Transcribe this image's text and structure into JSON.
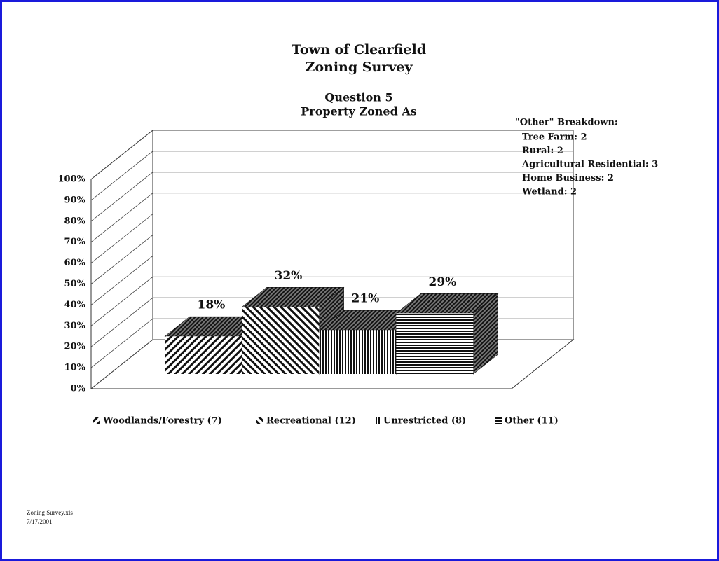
{
  "chart_data": {
    "type": "bar3d",
    "title": [
      "Town of Clearfield",
      "Zoning Survey"
    ],
    "subtitle": [
      "Question 5",
      "Property Zoned As"
    ],
    "categories": [
      "Woodlands/Forestry (7)",
      "Recreational (12)",
      "Unrestricted (8)",
      "Other (11)"
    ],
    "values": [
      18,
      32,
      21,
      29
    ],
    "value_labels": [
      "18%",
      "32%",
      "21%",
      "29%"
    ],
    "ylim": [
      0,
      100
    ],
    "yticks": [
      {
        "value": 0,
        "label": "0%"
      },
      {
        "value": 10,
        "label": "10%"
      },
      {
        "value": 20,
        "label": "20%"
      },
      {
        "value": 30,
        "label": "30%"
      },
      {
        "value": 40,
        "label": "40%"
      },
      {
        "value": 50,
        "label": "50%"
      },
      {
        "value": 60,
        "label": "60%"
      },
      {
        "value": 70,
        "label": "70%"
      },
      {
        "value": 80,
        "label": "80%"
      },
      {
        "value": 90,
        "label": "90%"
      },
      {
        "value": 100,
        "label": "100%"
      }
    ],
    "grid": true,
    "annotation": {
      "heading": "\"Other\" Breakdown:",
      "lines": [
        "Tree Farm: 2",
        "Rural: 2",
        "Agricultural Residential: 3",
        "Home Business: 2",
        "Wetland: 2"
      ]
    },
    "footer": [
      "Zoning Survey.xls",
      "7/17/2001"
    ]
  }
}
